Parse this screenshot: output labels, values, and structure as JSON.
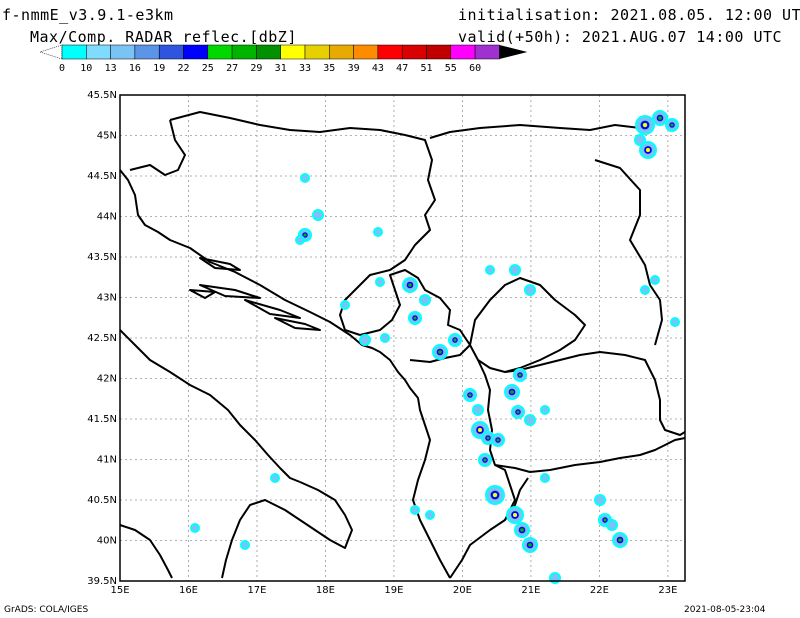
{
  "header": {
    "model": "f-nmmE_v3.9.1-e3km",
    "field": "Max/Comp. RADAR reflec.[dbZ]",
    "initialisation": "initialisation: 2021.08.05. 12:00 UTC",
    "valid": "valid(+50h): 2021.AUG.07 14:00 UTC"
  },
  "colorbar": {
    "labels": [
      "0",
      "10",
      "13",
      "16",
      "19",
      "22",
      "25",
      "27",
      "29",
      "31",
      "33",
      "35",
      "39",
      "43",
      "47",
      "51",
      "55",
      "60"
    ],
    "colors": [
      "#00ffff",
      "#7fdcff",
      "#79c3f5",
      "#5c94e8",
      "#2f55e0",
      "#0000ff",
      "#00d800",
      "#00b400",
      "#009000",
      "#ffff00",
      "#e6d000",
      "#e6aa00",
      "#ff8c00",
      "#ff0000",
      "#d80000",
      "#c00000",
      "#ff00ff",
      "#a030d0",
      "#000000"
    ]
  },
  "map": {
    "lon_labels": [
      "15E",
      "16E",
      "17E",
      "18E",
      "19E",
      "20E",
      "21E",
      "22E",
      "23E"
    ],
    "lat_labels": [
      "45.5N",
      "45N",
      "44.5N",
      "44N",
      "43.5N",
      "43N",
      "42.5N",
      "42N",
      "41.5N",
      "41N",
      "40.5N",
      "40N",
      "39.5N"
    ],
    "lon_range": [
      15,
      23.25
    ],
    "lat_range": [
      39.5,
      45.5
    ]
  },
  "footer": {
    "left": "GrADS: COLA/IGES",
    "right": "2021-08-05-23:04"
  }
}
